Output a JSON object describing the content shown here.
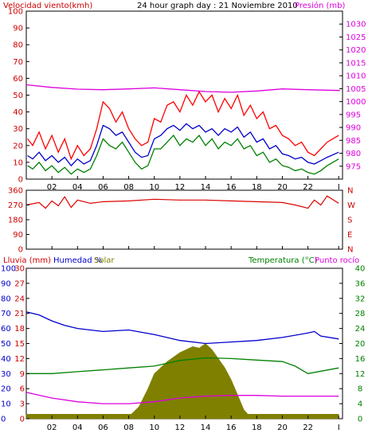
{
  "header": {
    "left": "Velocidad viento(kmh)",
    "center": "24 hour graph day : 21 Noviembre 2010",
    "right": "Presión (mb)"
  },
  "colors": {
    "wind_gust": "#ff0000",
    "wind_avg": "#0000cc",
    "wind_min": "#008000",
    "pressure": "#dd00dd",
    "direction": "#dd0000",
    "humidity": "#0000cc",
    "temperature": "#008000",
    "dewpoint": "#dd00dd",
    "solar_fill": "#808000",
    "axis_left_red": "#cc0000",
    "axis_blue": "#0000cc",
    "axis_green": "#008000"
  },
  "x_ticks": [
    "02",
    "04",
    "06",
    "08",
    "10",
    "12",
    "14",
    "16",
    "18",
    "20",
    "22",
    "I"
  ],
  "panels": {
    "wind": {
      "y_ticks_left": [
        "100",
        "90",
        "80",
        "70",
        "60",
        "50",
        "40",
        "30",
        "20",
        "10",
        "0"
      ],
      "y_ticks_right": [
        "1030",
        "1025",
        "1020",
        "1015",
        "1010",
        "1005",
        "1000",
        "995",
        "990",
        "985",
        "980",
        "975"
      ]
    },
    "direction": {
      "y_ticks_left": [
        "360",
        "270",
        "180",
        "90",
        "0"
      ],
      "y_ticks_right": [
        "N",
        "W",
        "S",
        "E",
        "N"
      ]
    },
    "bottom": {
      "label_rain": "Lluvia (mm)",
      "label_humidity": "Humedad %",
      "label_solar": "Solar",
      "label_temp": "Temperatura (°C)",
      "label_dew": "Punto rocío",
      "y_ticks_blue": [
        "100",
        "90",
        "80",
        "70",
        "60",
        "50",
        "40",
        "30",
        "20",
        "10",
        "0"
      ],
      "y_ticks_red": [
        "30",
        "27",
        "24",
        "21",
        "18",
        "15",
        "12",
        "9",
        "6",
        "3",
        "0"
      ],
      "y_ticks_green": [
        "40",
        "36",
        "32",
        "28",
        "24",
        "20",
        "16",
        "12",
        "8",
        "4",
        "0"
      ]
    }
  },
  "chart_data": [
    {
      "type": "line",
      "title": "24 hour graph day : 21 Noviembre 2010",
      "x_unit": "hour",
      "xlim": [
        0,
        24.7
      ],
      "ylabel": "Velocidad viento(kmh)",
      "ylim": [
        0,
        100
      ],
      "y2label": "Presión (mb)",
      "y2lim": [
        970,
        1035
      ],
      "series": [
        {
          "name": "gust",
          "x": [
            0.1,
            0.5,
            1,
            1.5,
            2,
            2.5,
            3,
            3.5,
            4,
            4.5,
            5,
            5.5,
            6,
            6.5,
            7,
            7.5,
            8,
            8.5,
            9,
            9.5,
            10,
            10.5,
            11,
            11.5,
            12,
            12.5,
            13,
            13.5,
            14,
            14.5,
            15,
            15.5,
            16,
            16.5,
            17,
            17.5,
            18,
            18.5,
            19,
            19.5,
            20,
            20.5,
            21,
            21.5,
            22,
            22.5,
            23,
            23.5,
            24.4
          ],
          "values": [
            24,
            20,
            28,
            18,
            26,
            16,
            24,
            12,
            20,
            14,
            18,
            30,
            46,
            42,
            34,
            40,
            30,
            24,
            20,
            22,
            36,
            34,
            44,
            46,
            40,
            50,
            44,
            52,
            46,
            50,
            40,
            48,
            42,
            50,
            38,
            44,
            36,
            40,
            30,
            32,
            26,
            24,
            20,
            22,
            16,
            14,
            18,
            22,
            26
          ]
        },
        {
          "name": "average",
          "x": [
            0.1,
            0.5,
            1,
            1.5,
            2,
            2.5,
            3,
            3.5,
            4,
            4.5,
            5,
            5.5,
            6,
            6.5,
            7,
            7.5,
            8,
            8.5,
            9,
            9.5,
            10,
            10.5,
            11,
            11.5,
            12,
            12.5,
            13,
            13.5,
            14,
            14.5,
            15,
            15.5,
            16,
            16.5,
            17,
            17.5,
            18,
            18.5,
            19,
            19.5,
            20,
            20.5,
            21,
            21.5,
            22,
            22.5,
            23,
            23.5,
            24.4
          ],
          "values": [
            14,
            12,
            16,
            11,
            14,
            10,
            13,
            8,
            12,
            9,
            11,
            20,
            32,
            30,
            26,
            28,
            22,
            16,
            13,
            14,
            24,
            26,
            30,
            32,
            29,
            33,
            30,
            32,
            28,
            30,
            26,
            30,
            28,
            31,
            25,
            28,
            22,
            24,
            18,
            20,
            15,
            14,
            12,
            13,
            10,
            9,
            11,
            13,
            16
          ]
        },
        {
          "name": "minimum",
          "x": [
            0.1,
            0.5,
            1,
            1.5,
            2,
            2.5,
            3,
            3.5,
            4,
            4.5,
            5,
            5.5,
            6,
            6.5,
            7,
            7.5,
            8,
            8.5,
            9,
            9.5,
            10,
            10.5,
            11,
            11.5,
            12,
            12.5,
            13,
            13.5,
            14,
            14.5,
            15,
            15.5,
            16,
            16.5,
            17,
            17.5,
            18,
            18.5,
            19,
            19.5,
            20,
            20.5,
            21,
            21.5,
            22,
            22.5,
            23,
            23.5,
            24.4
          ],
          "values": [
            8,
            6,
            10,
            5,
            8,
            4,
            7,
            3,
            6,
            4,
            6,
            14,
            24,
            20,
            18,
            22,
            16,
            10,
            6,
            8,
            18,
            18,
            22,
            26,
            20,
            24,
            22,
            26,
            20,
            24,
            18,
            22,
            20,
            24,
            18,
            20,
            14,
            16,
            10,
            12,
            8,
            7,
            5,
            6,
            4,
            3,
            5,
            8,
            12
          ]
        },
        {
          "name": "pressure",
          "axis": "y2",
          "x": [
            0,
            2,
            4,
            6,
            8,
            10,
            12,
            14,
            16,
            18,
            20,
            22,
            24.5
          ],
          "values": [
            1006.5,
            1005.5,
            1004.8,
            1004.6,
            1004.9,
            1005.3,
            1004.6,
            1003.9,
            1003.6,
            1004.1,
            1004.9,
            1004.6,
            1004.3
          ]
        }
      ]
    },
    {
      "type": "line",
      "x_unit": "hour",
      "xlim": [
        0,
        24.7
      ],
      "ylim": [
        0,
        360
      ],
      "y_tick_values": [
        360,
        270,
        180,
        90,
        0
      ],
      "series": [
        {
          "name": "direction",
          "x": [
            0,
            1,
            1.5,
            2,
            2.5,
            3,
            3.5,
            4,
            5,
            6,
            8,
            10,
            12,
            14,
            16,
            18,
            20,
            21,
            22,
            22.5,
            23,
            23.5,
            24.4
          ],
          "values": [
            270,
            285,
            250,
            295,
            265,
            320,
            255,
            300,
            280,
            290,
            295,
            305,
            300,
            300,
            295,
            290,
            285,
            270,
            250,
            300,
            270,
            325,
            280
          ]
        }
      ]
    },
    {
      "type": "line",
      "x_unit": "hour",
      "xlim": [
        0,
        24.7
      ],
      "series": [
        {
          "name": "humidity",
          "axis": "blue",
          "ylim": [
            0,
            100
          ],
          "x": [
            0,
            1,
            2,
            3,
            4,
            6,
            8,
            10,
            12,
            14,
            16,
            18,
            20,
            22,
            22.5,
            23,
            24.4
          ],
          "values": [
            71,
            69,
            65,
            62,
            60,
            58,
            59,
            56,
            52,
            50,
            51,
            52,
            54,
            57,
            58,
            55,
            53
          ]
        },
        {
          "name": "temperature",
          "axis": "green",
          "ylim": [
            0,
            40
          ],
          "x": [
            0,
            2,
            4,
            6,
            8,
            10,
            12,
            14,
            16,
            18,
            20,
            21,
            22,
            24.4
          ],
          "values": [
            12,
            12,
            12.5,
            13,
            13.5,
            14,
            15.5,
            16.2,
            16,
            15.6,
            15.2,
            14,
            12,
            13.5
          ]
        },
        {
          "name": "dewpoint",
          "axis": "green",
          "ylim": [
            0,
            40
          ],
          "x": [
            0,
            2,
            4,
            6,
            8,
            10,
            12,
            14,
            16,
            18,
            20,
            22,
            24.4
          ],
          "values": [
            7,
            5.5,
            4.5,
            4,
            4,
            4.5,
            5.5,
            6,
            6.2,
            6.2,
            6,
            6,
            6
          ]
        },
        {
          "name": "solar",
          "axis": "blue",
          "ylim": [
            0,
            100
          ],
          "x": [
            0,
            8.2,
            8.8,
            9.5,
            10,
            11,
            12,
            12.5,
            13,
            13.5,
            14,
            14.5,
            15,
            15.5,
            16,
            16.5,
            17,
            17.3,
            24.4
          ],
          "values": [
            3,
            3,
            8,
            20,
            30,
            38,
            44,
            46,
            48,
            47,
            50,
            46,
            40,
            34,
            26,
            16,
            6,
            3,
            3
          ]
        }
      ]
    }
  ]
}
